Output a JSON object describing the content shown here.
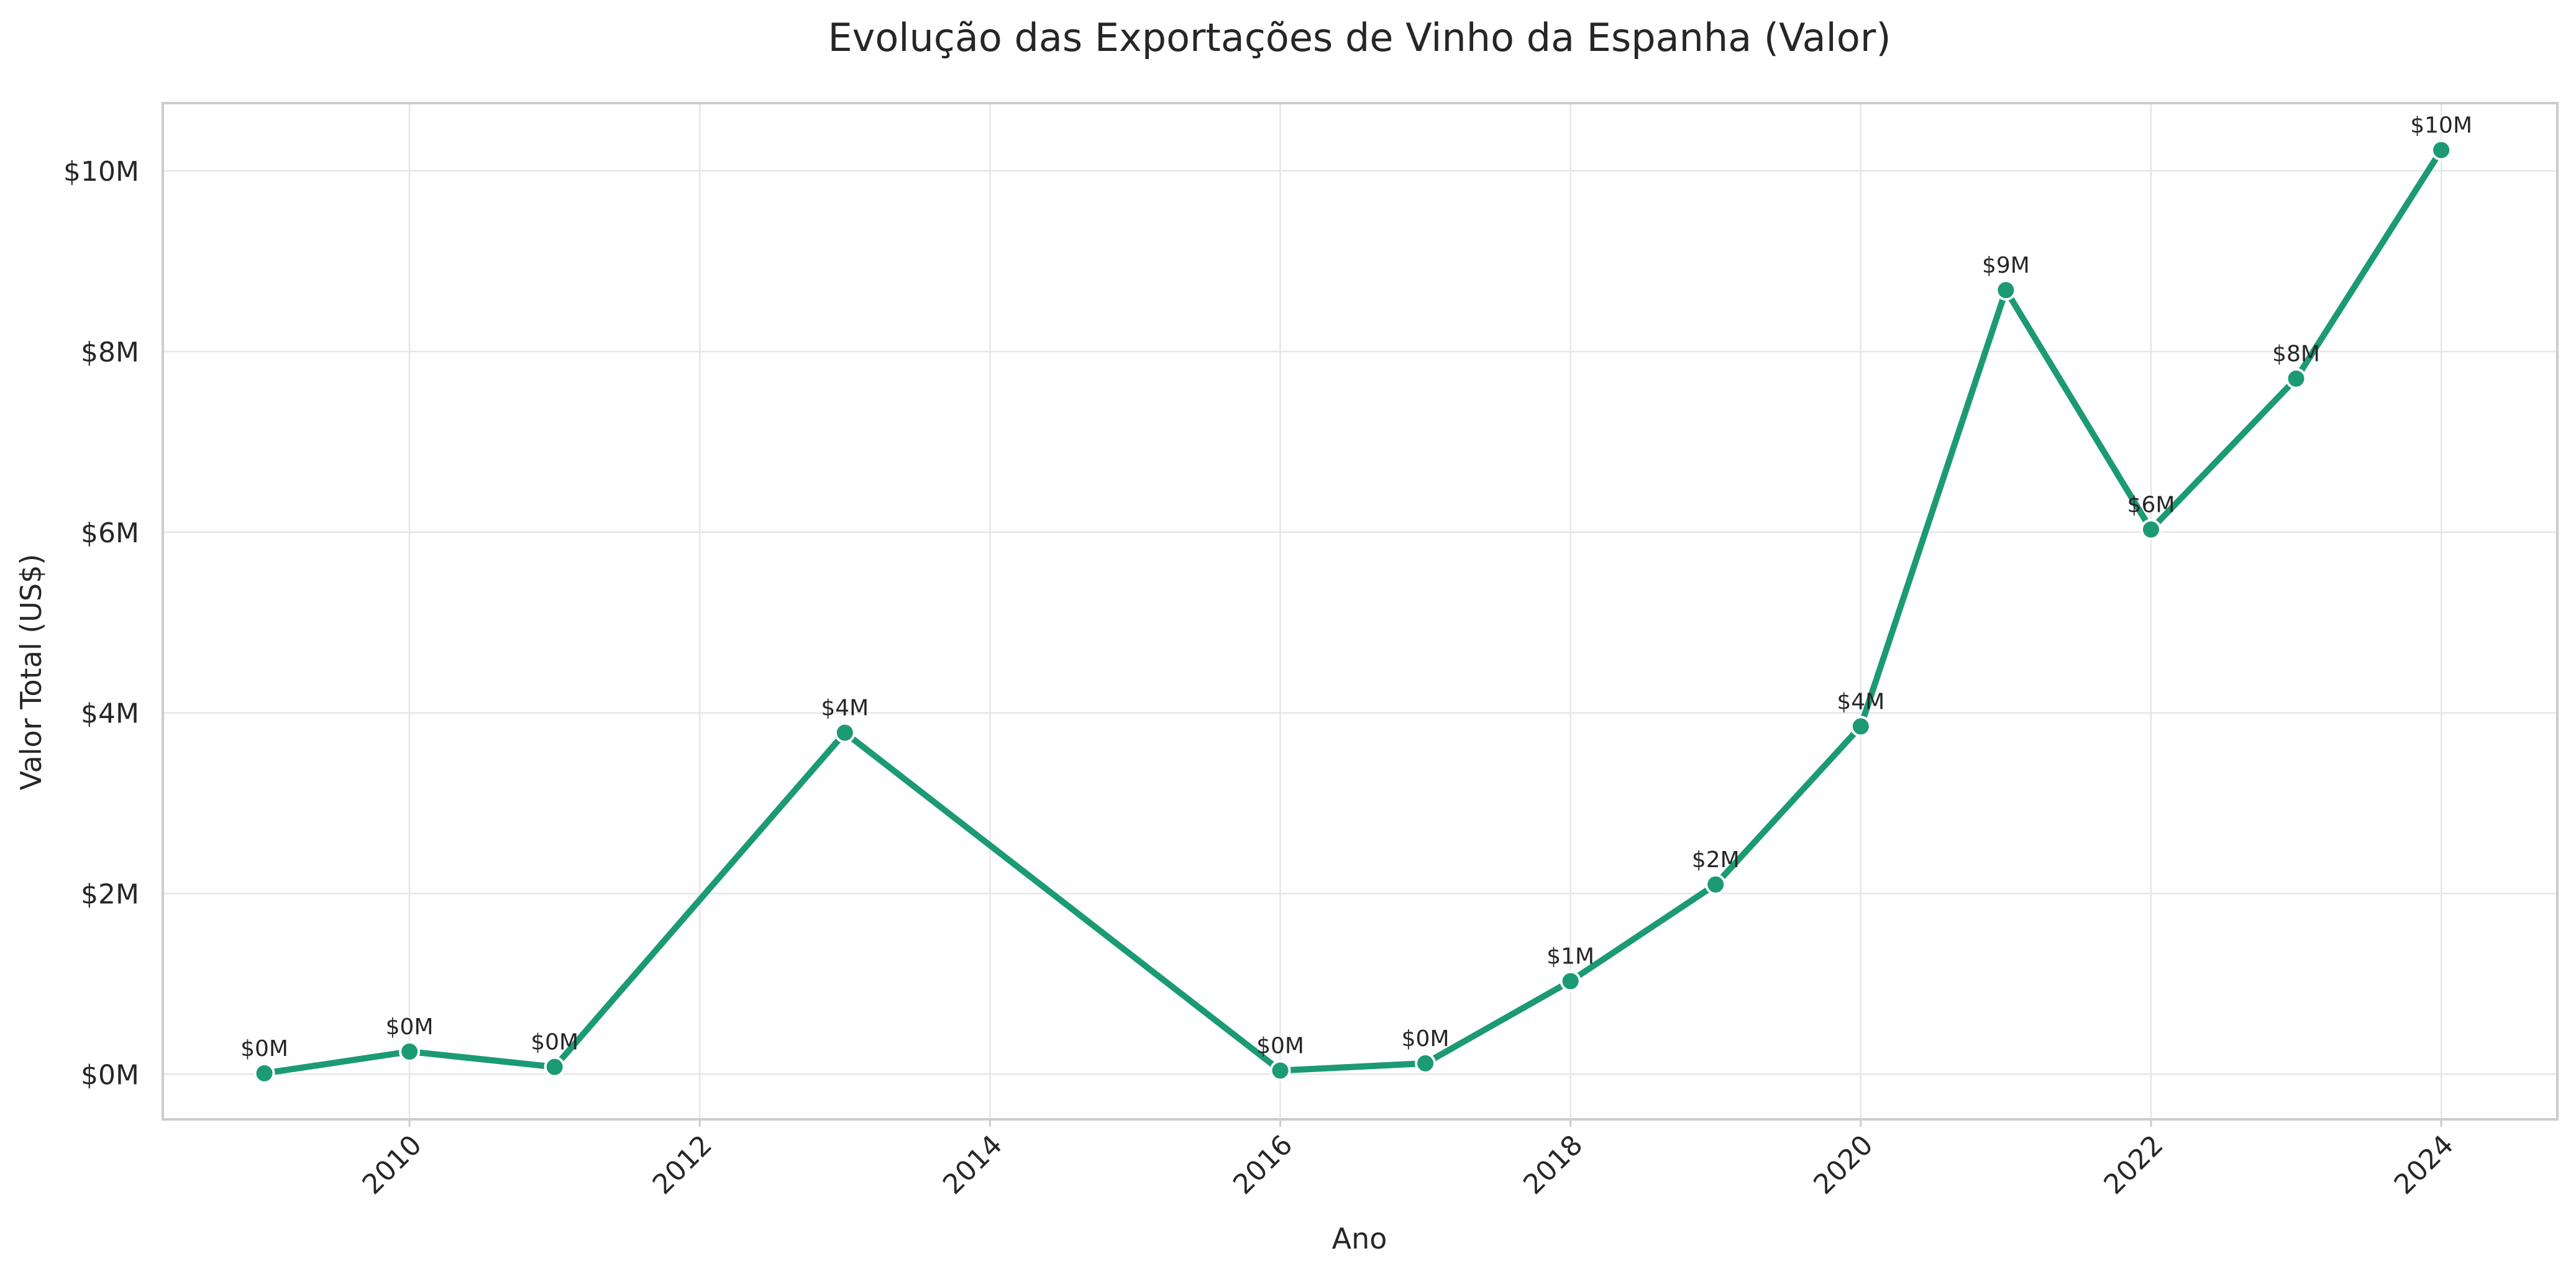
{
  "chart_data": {
    "type": "line",
    "title": "Evolução das Exportações de Vinho da Espanha (Valor)",
    "xlabel": "Ano",
    "ylabel": "Valor Total (US$)",
    "xlim": [
      2008.3,
      2024.8
    ],
    "ylim": [
      -500000,
      10750000
    ],
    "x_ticks": [
      2010,
      2012,
      2014,
      2016,
      2018,
      2020,
      2022,
      2024
    ],
    "x_tick_labels": [
      "2010",
      "2012",
      "2014",
      "2016",
      "2018",
      "2020",
      "2022",
      "2024"
    ],
    "y_ticks": [
      0,
      2000000,
      4000000,
      6000000,
      8000000,
      10000000
    ],
    "y_tick_labels": [
      "$0M",
      "$2M",
      "$4M",
      "$6M",
      "$8M",
      "$10M"
    ],
    "grid": true,
    "line_color": "#1b9a74",
    "series": [
      {
        "x": [
          2009,
          2010,
          2011,
          2013,
          2016,
          2017,
          2018,
          2019,
          2020,
          2021,
          2022,
          2023,
          2024
        ],
        "values": [
          10000,
          250000,
          80000,
          3780000,
          40000,
          120000,
          1030000,
          2100000,
          3850000,
          8680000,
          6030000,
          7700000,
          10230000
        ],
        "labels": [
          "$0M",
          "$0M",
          "$0M",
          "$4M",
          "$0M",
          "$0M",
          "$1M",
          "$2M",
          "$4M",
          "$9M",
          "$6M",
          "$8M",
          "$10M"
        ]
      }
    ]
  }
}
